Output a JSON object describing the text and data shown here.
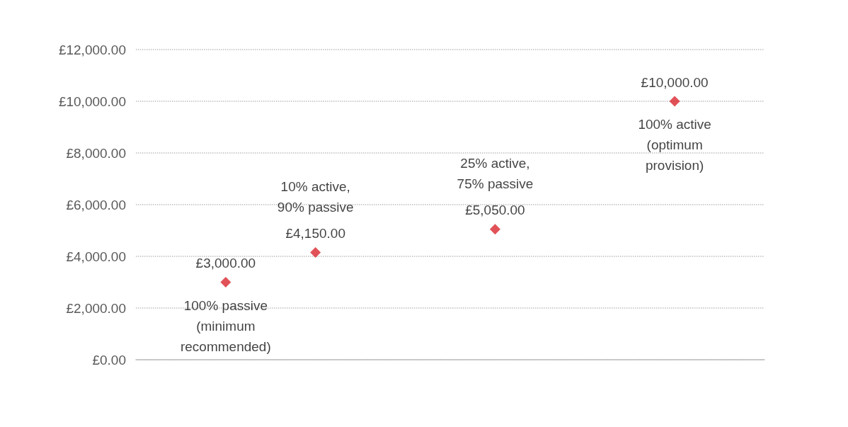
{
  "chart_data": {
    "type": "scatter",
    "categories": [
      null,
      null,
      null,
      null,
      null,
      null,
      null,
      null
    ],
    "values": [
      null,
      3000,
      4150,
      null,
      5050,
      null,
      10000,
      null
    ],
    "color": "#d9272e",
    "value_labels": [
      null,
      "£3,000.00",
      "£4,150.00",
      null,
      "£5,050.00",
      null,
      "£10,000.00",
      null
    ],
    "ylim": [
      0,
      12000
    ],
    "yticks": [
      {
        "value": 0,
        "label": "£0.00"
      },
      {
        "value": 2000,
        "label": "£2,000.00"
      },
      {
        "value": 4000,
        "label": "£4,000.00"
      },
      {
        "value": 6000,
        "label": "£6,000.00"
      },
      {
        "value": 8000,
        "label": "£8,000.00"
      },
      {
        "value": 10000,
        "label": "£10,000.00"
      },
      {
        "value": 12000,
        "label": "£12,000.00"
      }
    ],
    "tick_labels": "y",
    "grid": "y",
    "marker": "diamond",
    "annotations": [
      "100% passive\n(minimum\nrecommended)",
      "10% active,\n90% passive",
      "25% active,\n75% passive",
      "100% active\n(optimum\nprovision)"
    ]
  }
}
